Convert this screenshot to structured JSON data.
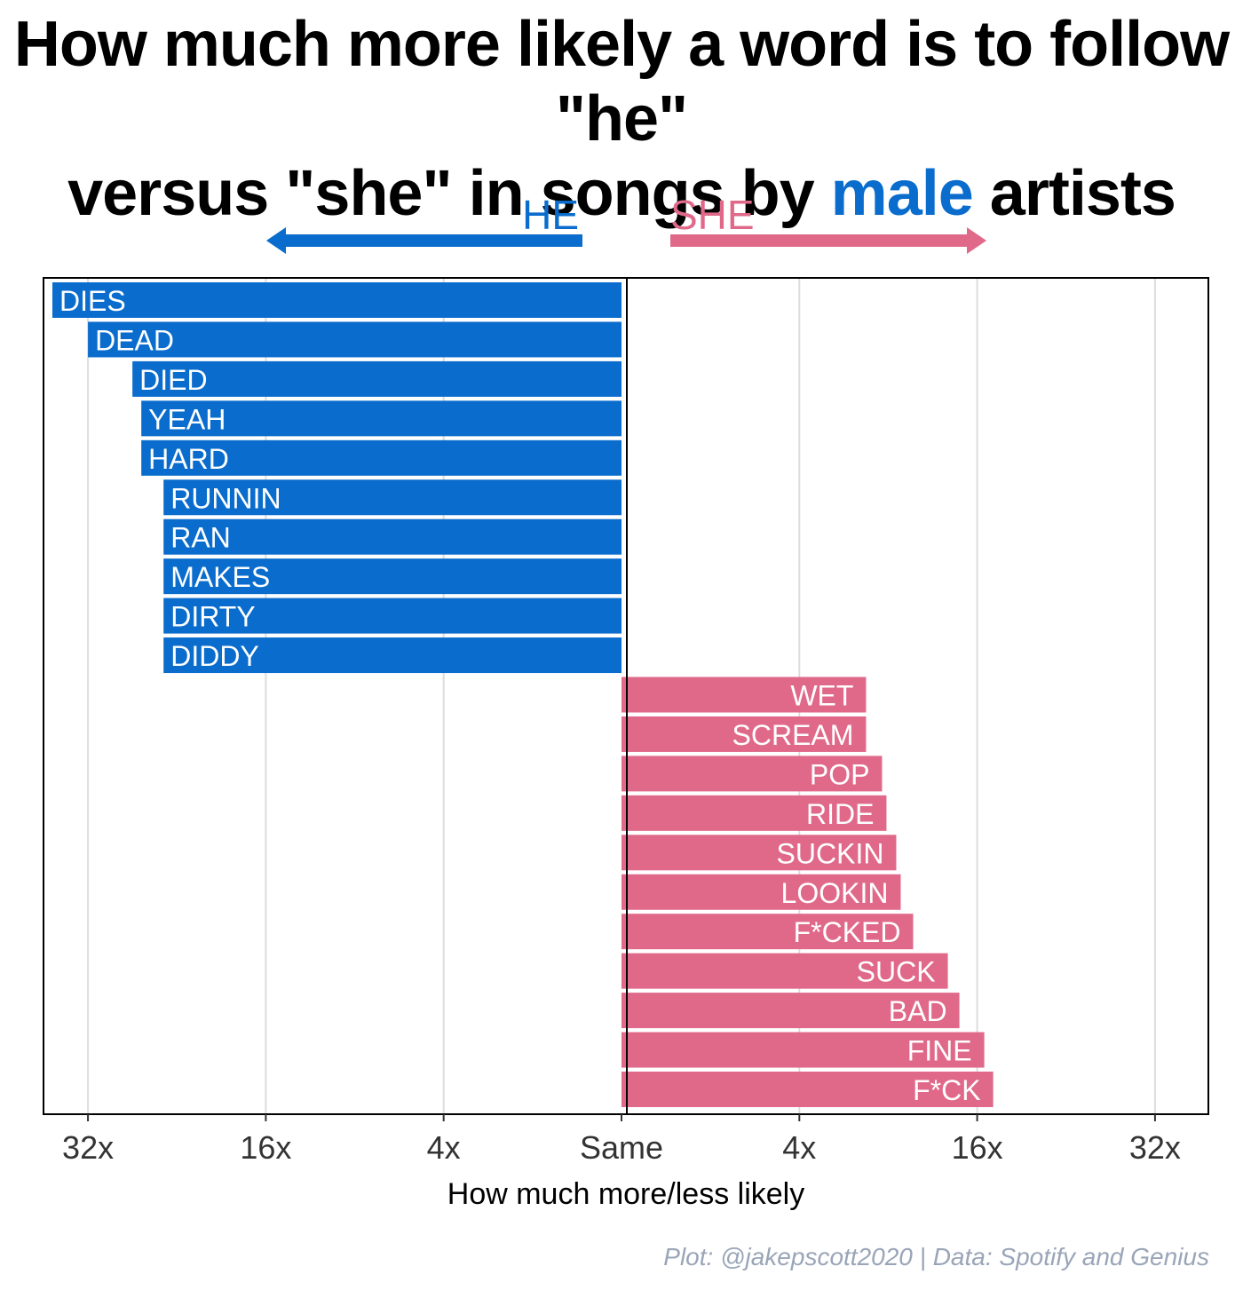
{
  "title": {
    "line1": "How much more likely a word is to follow \"he\"",
    "line2_before": "versus \"she\" in songs by ",
    "line2_highlight": "male",
    "line2_after": " artists"
  },
  "direction_labels": {
    "he": "HE",
    "she": "SHE"
  },
  "colors": {
    "he": "#0a6ccc",
    "she": "#e0698a",
    "title_highlight": "#0a6ccc",
    "caption": "#9aa5b8"
  },
  "caption": "Plot: @jakepscott2020 | Data: Spotify and Genius",
  "chart_data": {
    "type": "bar",
    "orientation": "horizontal",
    "xlabel": "How much more/less likely",
    "x_scale": "log2, diverging from Same",
    "x_ticks": [
      {
        "label": "32x",
        "value": -6
      },
      {
        "label": "16x",
        "value": -4
      },
      {
        "label": "4x",
        "value": -2
      },
      {
        "label": "Same",
        "value": 0
      },
      {
        "label": "4x",
        "value": 2
      },
      {
        "label": "16x",
        "value": 4
      },
      {
        "label": "32x",
        "value": 6
      }
    ],
    "xlim": [
      -6.5,
      6.6
    ],
    "grid": true,
    "series": [
      {
        "name": "HE",
        "color": "#0a6ccc",
        "bars": [
          {
            "label": "DIES",
            "value": -6.4
          },
          {
            "label": "DEAD",
            "value": -6.0
          },
          {
            "label": "DIED",
            "value": -5.5
          },
          {
            "label": "YEAH",
            "value": -5.4
          },
          {
            "label": "HARD",
            "value": -5.4
          },
          {
            "label": "RUNNIN",
            "value": -5.15
          },
          {
            "label": "RAN",
            "value": -5.15
          },
          {
            "label": "MAKES",
            "value": -5.15
          },
          {
            "label": "DIRTY",
            "value": -5.15
          },
          {
            "label": "DIDDY",
            "value": -5.15
          }
        ]
      },
      {
        "name": "SHE",
        "color": "#e0698a",
        "bars": [
          {
            "label": "WET",
            "value": 2.75
          },
          {
            "label": "SCREAM",
            "value": 2.75
          },
          {
            "label": "POP",
            "value": 2.93
          },
          {
            "label": "RIDE",
            "value": 2.98
          },
          {
            "label": "SUCKIN",
            "value": 3.09
          },
          {
            "label": "LOOKIN",
            "value": 3.14
          },
          {
            "label": "F*CKED",
            "value": 3.28
          },
          {
            "label": "SUCK",
            "value": 3.67
          },
          {
            "label": "BAD",
            "value": 3.8
          },
          {
            "label": "FINE",
            "value": 4.08
          },
          {
            "label": "F*CK",
            "value": 4.18
          }
        ]
      }
    ]
  }
}
